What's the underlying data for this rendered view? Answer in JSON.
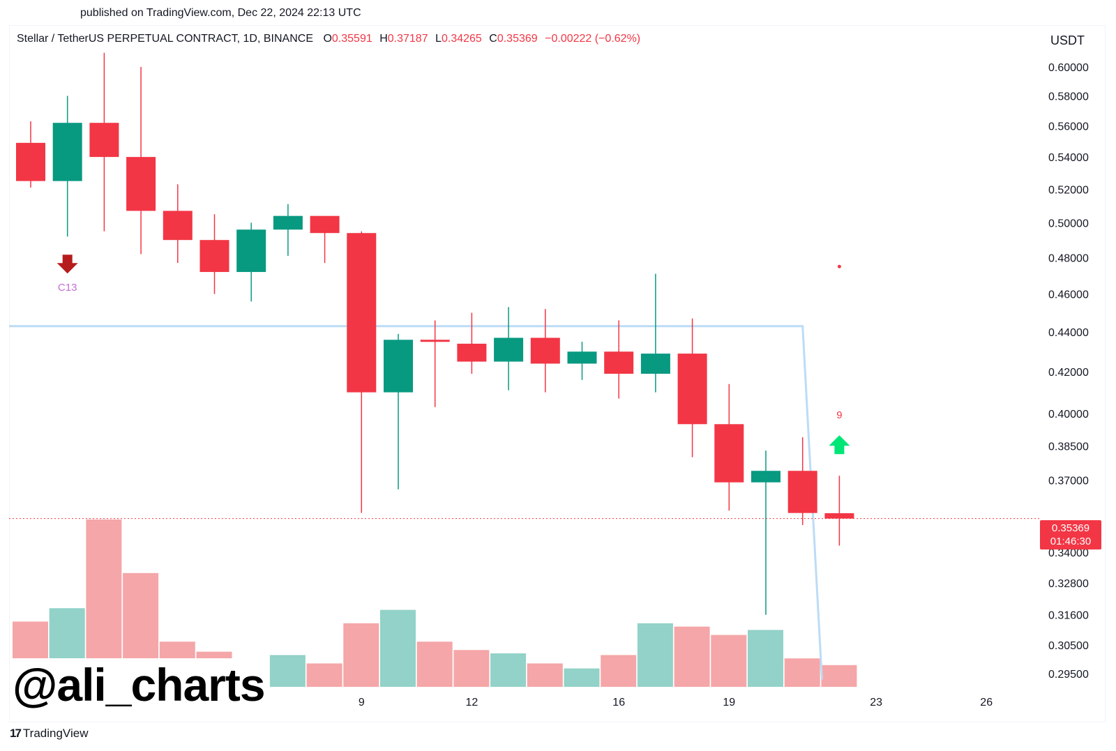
{
  "header": {
    "published": "published on TradingView.com, Dec 22, 2024 22:13 UTC"
  },
  "legend": {
    "symbol": "Stellar / TetherUS PERPETUAL CONTRACT, 1D, BINANCE",
    "o_label": "O",
    "o_value": "0.35591",
    "h_label": "H",
    "h_value": "0.37187",
    "l_label": "L",
    "l_value": "0.34265",
    "c_label": "C",
    "c_value": "0.35369",
    "change": "−0.00222 (−0.62%)"
  },
  "currency": "USDT",
  "price_tag": {
    "price": "0.35369",
    "countdown": "01:46:30"
  },
  "watermark": "@ali_charts",
  "brand": {
    "name": "TradingView",
    "mark": "17"
  },
  "colors": {
    "up": "#089981",
    "down": "#f23645",
    "vol_up": "#92d2c8",
    "vol_down": "#f5a6a8",
    "trendline": "#bcdcf5",
    "signal_down": "#b71c1c",
    "signal_up": "#00e676",
    "c13": "#c26ed6"
  },
  "chart_data": {
    "type": "candlestick",
    "axis": {
      "y_ticks": [
        "0.60000",
        "0.58000",
        "0.56000",
        "0.54000",
        "0.52000",
        "0.50000",
        "0.48000",
        "0.46000",
        "0.44000",
        "0.42000",
        "0.40000",
        "0.38500",
        "0.37000",
        "0.34000",
        "0.32800",
        "0.31600",
        "0.30500",
        "0.29500"
      ],
      "y_scale": "log",
      "x_ticks": [
        "9",
        "12",
        "16",
        "19",
        "23",
        "26"
      ]
    },
    "candles": [
      {
        "date": "Nov 30",
        "o": 0.549,
        "h": 0.563,
        "l": 0.521,
        "c": 0.525
      },
      {
        "date": "Dec 1",
        "o": 0.525,
        "h": 0.58,
        "l": 0.492,
        "c": 0.562
      },
      {
        "date": "Dec 2",
        "o": 0.562,
        "h": 0.61,
        "l": 0.495,
        "c": 0.54
      },
      {
        "date": "Dec 3",
        "o": 0.54,
        "h": 0.6,
        "l": 0.482,
        "c": 0.507
      },
      {
        "date": "Dec 4",
        "o": 0.507,
        "h": 0.523,
        "l": 0.477,
        "c": 0.49
      },
      {
        "date": "Dec 5",
        "o": 0.49,
        "h": 0.505,
        "l": 0.46,
        "c": 0.472
      },
      {
        "date": "Dec 6",
        "o": 0.472,
        "h": 0.5,
        "l": 0.456,
        "c": 0.496
      },
      {
        "date": "Dec 7",
        "o": 0.496,
        "h": 0.511,
        "l": 0.481,
        "c": 0.504
      },
      {
        "date": "Dec 8",
        "o": 0.504,
        "h": 0.504,
        "l": 0.477,
        "c": 0.494
      },
      {
        "date": "Dec 9",
        "o": 0.494,
        "h": 0.495,
        "l": 0.356,
        "c": 0.41
      },
      {
        "date": "Dec 10",
        "o": 0.41,
        "h": 0.439,
        "l": 0.366,
        "c": 0.436
      },
      {
        "date": "Dec 11",
        "o": 0.436,
        "h": 0.446,
        "l": 0.403,
        "c": 0.435
      },
      {
        "date": "Dec 12",
        "o": 0.434,
        "h": 0.45,
        "l": 0.419,
        "c": 0.425
      },
      {
        "date": "Dec 13",
        "o": 0.425,
        "h": 0.453,
        "l": 0.411,
        "c": 0.437
      },
      {
        "date": "Dec 14",
        "o": 0.437,
        "h": 0.452,
        "l": 0.41,
        "c": 0.424
      },
      {
        "date": "Dec 15",
        "o": 0.424,
        "h": 0.435,
        "l": 0.416,
        "c": 0.43
      },
      {
        "date": "Dec 16",
        "o": 0.43,
        "h": 0.446,
        "l": 0.407,
        "c": 0.419
      },
      {
        "date": "Dec 17",
        "o": 0.419,
        "h": 0.471,
        "l": 0.41,
        "c": 0.429
      },
      {
        "date": "Dec 18",
        "o": 0.429,
        "h": 0.447,
        "l": 0.38,
        "c": 0.395
      },
      {
        "date": "Dec 19",
        "o": 0.395,
        "h": 0.414,
        "l": 0.357,
        "c": 0.369
      },
      {
        "date": "Dec 20",
        "o": 0.369,
        "h": 0.383,
        "l": 0.316,
        "c": 0.374
      },
      {
        "date": "Dec 21",
        "o": 0.374,
        "h": 0.389,
        "l": 0.351,
        "c": 0.356
      },
      {
        "date": "Dec 22",
        "o": 0.35591,
        "h": 0.37187,
        "l": 0.34265,
        "c": 0.35369
      }
    ],
    "volume_relative": [
      0.39,
      0.47,
      1.0,
      0.68,
      0.27,
      0.21,
      0.02,
      0.19,
      0.14,
      0.38,
      0.46,
      0.27,
      0.22,
      0.2,
      0.14,
      0.11,
      0.19,
      0.38,
      0.36,
      0.31,
      0.34,
      0.17,
      0.13
    ],
    "volume_x_tick_labels_hidden": true,
    "markers": [
      {
        "type": "arrow-down",
        "date": "Dec 1",
        "label": "C13"
      },
      {
        "type": "arrow-up",
        "date": "Dec 22",
        "label": "9"
      },
      {
        "type": "dot",
        "date": "Dec 22",
        "value": 0.475
      }
    ],
    "trendline": {
      "from_value": 0.443,
      "to_date": "Dec 21",
      "to_value": 0.443,
      "drop_to_date": "Dec 22",
      "drop_to_value": 0.293
    },
    "last_price_line": 0.35369
  }
}
